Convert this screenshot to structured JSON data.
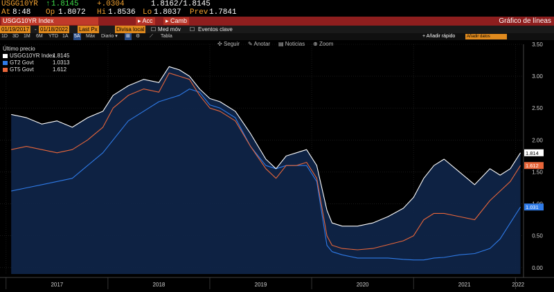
{
  "quote": {
    "ticker": "USGG10YR",
    "arrow": "↑",
    "last": "1.8145",
    "change": "+.0304",
    "bid_ask": "1.8162/1.8145",
    "at_label": "At",
    "time": "8:48",
    "op_label": "Op",
    "open": "1.8072",
    "hi_label": "Hi",
    "high": "1.8536",
    "lo_label": "Lo",
    "low": "1.8037",
    "prev_label": "Prev",
    "prev": "1.7841"
  },
  "red_bar": {
    "ticker_field": "USGG10YR Index",
    "btn_acc": "Acc",
    "btn_camb": "Camb",
    "title": "Gráfico de líneas"
  },
  "toolbar": {
    "start_date": "01/19/2017",
    "end_date": "01/18/2022",
    "last_px": "Last Px",
    "currency": "Divisa local",
    "med_mov": "Med móv",
    "eventos": "Eventos clave"
  },
  "ranges": [
    "1D",
    "3D",
    "1M",
    "6M",
    "YTD",
    "1A",
    "5A",
    "Máx"
  ],
  "active_range": "5A",
  "periodicity": "Diario",
  "tabla": "Tabla",
  "quick_add": "Añadir rápido",
  "quick_box": "Añadir datos",
  "chart_tools": {
    "seguir": "Seguir",
    "anotar": "Anotar",
    "noticias": "Noticias",
    "zoom": "Zoom"
  },
  "legend": {
    "header": "Último precio"
  },
  "colors": {
    "usgg10yr": "#ffffff",
    "gt2": "#2f7be8",
    "gt5": "#e8663a",
    "background": "#000000",
    "area_fill": "#0f2447",
    "grid": "#2a2a2a"
  },
  "chart_data": {
    "type": "line",
    "x_labels": [
      "2017",
      "2018",
      "2019",
      "2020",
      "2021",
      "2022"
    ],
    "ylim": [
      -0.1,
      3.5
    ],
    "yticks": [
      "0.00",
      "0.50",
      "1.00",
      "1.50",
      "2.00",
      "2.50",
      "3.00",
      "3.50"
    ],
    "series": [
      {
        "name": "USGG10YR Index",
        "last": "1.8145",
        "tag": "1.814",
        "color": "#ffffff",
        "x": [
          2017.05,
          2017.2,
          2017.35,
          2017.5,
          2017.65,
          2017.8,
          2017.95,
          2018.05,
          2018.2,
          2018.35,
          2018.5,
          2018.6,
          2018.7,
          2018.8,
          2018.9,
          2019.0,
          2019.1,
          2019.25,
          2019.4,
          2019.55,
          2019.65,
          2019.75,
          2019.85,
          2019.95,
          2020.05,
          2020.15,
          2020.2,
          2020.3,
          2020.45,
          2020.6,
          2020.75,
          2020.9,
          2021.0,
          2021.1,
          2021.2,
          2021.3,
          2021.45,
          2021.6,
          2021.75,
          2021.85,
          2021.95,
          2022.05
        ],
        "y": [
          2.4,
          2.35,
          2.25,
          2.3,
          2.2,
          2.35,
          2.45,
          2.7,
          2.85,
          2.95,
          2.9,
          3.15,
          3.1,
          3.0,
          2.8,
          2.65,
          2.6,
          2.45,
          2.1,
          1.7,
          1.55,
          1.75,
          1.8,
          1.85,
          1.6,
          0.9,
          0.7,
          0.65,
          0.65,
          0.7,
          0.8,
          0.93,
          1.1,
          1.4,
          1.6,
          1.7,
          1.5,
          1.3,
          1.55,
          1.45,
          1.55,
          1.8
        ]
      },
      {
        "name": "GT2 Govt",
        "last": "1.0313",
        "tag": "1.031",
        "color": "#2f7be8",
        "x": [
          2017.05,
          2017.2,
          2017.35,
          2017.5,
          2017.65,
          2017.8,
          2017.95,
          2018.05,
          2018.2,
          2018.35,
          2018.5,
          2018.6,
          2018.7,
          2018.8,
          2018.9,
          2019.0,
          2019.1,
          2019.25,
          2019.4,
          2019.55,
          2019.65,
          2019.75,
          2019.85,
          2019.95,
          2020.05,
          2020.15,
          2020.2,
          2020.3,
          2020.45,
          2020.6,
          2020.75,
          2020.9,
          2021.0,
          2021.1,
          2021.2,
          2021.3,
          2021.45,
          2021.6,
          2021.75,
          2021.85,
          2021.95,
          2022.05
        ],
        "y": [
          1.2,
          1.25,
          1.3,
          1.35,
          1.4,
          1.6,
          1.8,
          2.0,
          2.3,
          2.45,
          2.6,
          2.65,
          2.7,
          2.8,
          2.75,
          2.55,
          2.5,
          2.35,
          1.9,
          1.6,
          1.55,
          1.6,
          1.6,
          1.6,
          1.35,
          0.35,
          0.25,
          0.2,
          0.15,
          0.15,
          0.15,
          0.13,
          0.12,
          0.12,
          0.15,
          0.16,
          0.2,
          0.22,
          0.3,
          0.45,
          0.7,
          0.95
        ]
      },
      {
        "name": "GT5 Govt",
        "last": "1.612",
        "tag": "1.612",
        "color": "#e8663a",
        "x": [
          2017.05,
          2017.2,
          2017.35,
          2017.5,
          2017.65,
          2017.8,
          2017.95,
          2018.05,
          2018.2,
          2018.35,
          2018.5,
          2018.6,
          2018.7,
          2018.8,
          2018.9,
          2019.0,
          2019.1,
          2019.25,
          2019.4,
          2019.55,
          2019.65,
          2019.75,
          2019.85,
          2019.95,
          2020.05,
          2020.15,
          2020.2,
          2020.3,
          2020.45,
          2020.6,
          2020.75,
          2020.9,
          2021.0,
          2021.1,
          2021.2,
          2021.3,
          2021.45,
          2021.6,
          2021.75,
          2021.85,
          2021.95,
          2022.05
        ],
        "y": [
          1.85,
          1.9,
          1.85,
          1.8,
          1.85,
          2.0,
          2.2,
          2.5,
          2.7,
          2.8,
          2.75,
          3.05,
          3.0,
          2.95,
          2.7,
          2.5,
          2.45,
          2.3,
          1.9,
          1.55,
          1.4,
          1.6,
          1.6,
          1.65,
          1.4,
          0.5,
          0.35,
          0.3,
          0.28,
          0.3,
          0.36,
          0.42,
          0.5,
          0.75,
          0.85,
          0.85,
          0.8,
          0.75,
          1.05,
          1.2,
          1.35,
          1.6
        ]
      }
    ]
  }
}
